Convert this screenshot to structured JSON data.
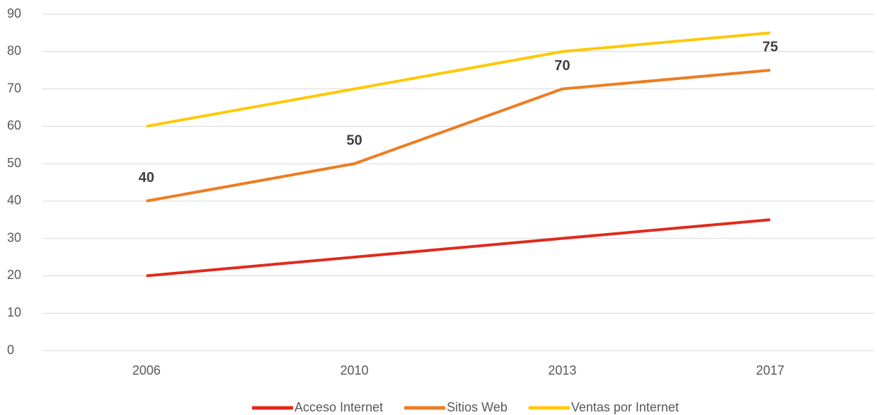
{
  "chart_data": {
    "type": "line",
    "categories": [
      "2006",
      "2010",
      "2013",
      "2017"
    ],
    "series": [
      {
        "name": "Acceso Internet",
        "color": "#e02a1c",
        "values": [
          20,
          25,
          30,
          35
        ]
      },
      {
        "name": "Sitios Web",
        "color": "#ed7d22",
        "values": [
          40,
          50,
          70,
          75
        ],
        "data_labels": true
      },
      {
        "name": "Ventas por Internet",
        "color": "#fdc90a",
        "values": [
          60,
          70,
          80,
          85
        ]
      }
    ],
    "ylim": [
      0,
      90
    ],
    "yticks": [
      0,
      10,
      20,
      30,
      40,
      50,
      60,
      70,
      80,
      90
    ],
    "grid": true,
    "legend": "bottom"
  }
}
